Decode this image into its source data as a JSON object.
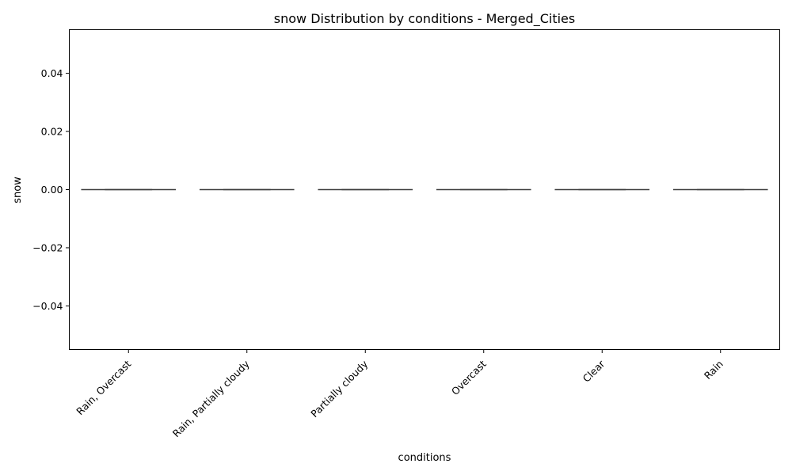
{
  "chart_data": {
    "type": "box",
    "title": "snow Distribution by conditions - Merged_Cities",
    "xlabel": "conditions",
    "ylabel": "snow",
    "categories": [
      "Rain, Overcast",
      "Rain, Partially cloudy",
      "Partially cloudy",
      "Overcast",
      "Clear",
      "Rain"
    ],
    "values": [
      0,
      0,
      0,
      0,
      0,
      0
    ],
    "ylim": [
      -0.055,
      0.055
    ],
    "yticks": [
      -0.04,
      -0.02,
      0.0,
      0.02,
      0.04
    ],
    "ytick_labels": [
      "−0.04",
      "−0.02",
      "0.00",
      "0.02",
      "0.04"
    ],
    "grid": false,
    "colors": {
      "axis": "#000000",
      "box_line": "#3f3f3f",
      "background": "#ffffff"
    }
  }
}
